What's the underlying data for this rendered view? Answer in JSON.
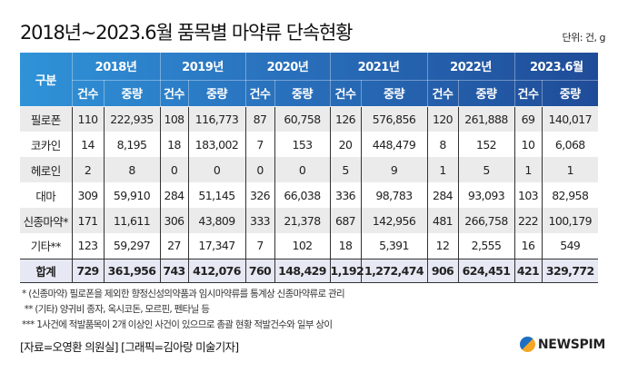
{
  "title": "2018년~2023.6월 품목별 마약류 단속현황",
  "unit": "단위: 건, g",
  "chart_data": {
    "type": "table",
    "row_header": "구분",
    "periods": [
      "2018년",
      "2019년",
      "2020년",
      "2021년",
      "2022년",
      "2023.6월"
    ],
    "subheaders": [
      "건수",
      "중량"
    ],
    "rows": [
      {
        "label": "필로폰",
        "values": [
          "110",
          "222,935",
          "108",
          "116,773",
          "87",
          "60,758",
          "126",
          "576,856",
          "120",
          "261,888",
          "69",
          "140,017"
        ]
      },
      {
        "label": "코카인",
        "values": [
          "14",
          "8,195",
          "18",
          "183,002",
          "7",
          "153",
          "20",
          "448,479",
          "8",
          "152",
          "10",
          "6,068"
        ]
      },
      {
        "label": "헤로인",
        "values": [
          "2",
          "8",
          "0",
          "0",
          "0",
          "0",
          "5",
          "9",
          "1",
          "5",
          "1",
          "1"
        ]
      },
      {
        "label": "대마",
        "values": [
          "309",
          "59,910",
          "284",
          "51,145",
          "326",
          "66,038",
          "336",
          "98,783",
          "284",
          "93,093",
          "103",
          "82,958"
        ]
      },
      {
        "label": "신종마약*",
        "values": [
          "171",
          "11,611",
          "306",
          "43,809",
          "333",
          "21,378",
          "687",
          "142,956",
          "481",
          "266,758",
          "222",
          "100,179"
        ]
      },
      {
        "label": "기타**",
        "values": [
          "123",
          "59,297",
          "27",
          "17,347",
          "7",
          "102",
          "18",
          "5,391",
          "12",
          "2,555",
          "16",
          "549"
        ]
      }
    ],
    "total": {
      "label": "합계",
      "values": [
        "729",
        "361,956",
        "743",
        "412,076",
        "760",
        "148,429",
        "1,192",
        "1,272,474",
        "906",
        "624,451",
        "421",
        "329,772"
      ]
    }
  },
  "notes": [
    "* (신종마약) 필로폰을 제외한 향정신성의약품과 임시마약류를 통계상 신종마약류로 관리",
    " ** (기타) 양귀비 종자, 옥시코돈, 모르핀, 펜타닐 등",
    "*** 1사건에 적발품목이 2개 이상인 사건이 있으므로 총괄 현황 적발건수와 일부 상이"
  ],
  "source": "[자료=오영환 의원실] [그래픽=김아랑 미술기자]",
  "logo": "NEWSPIM"
}
